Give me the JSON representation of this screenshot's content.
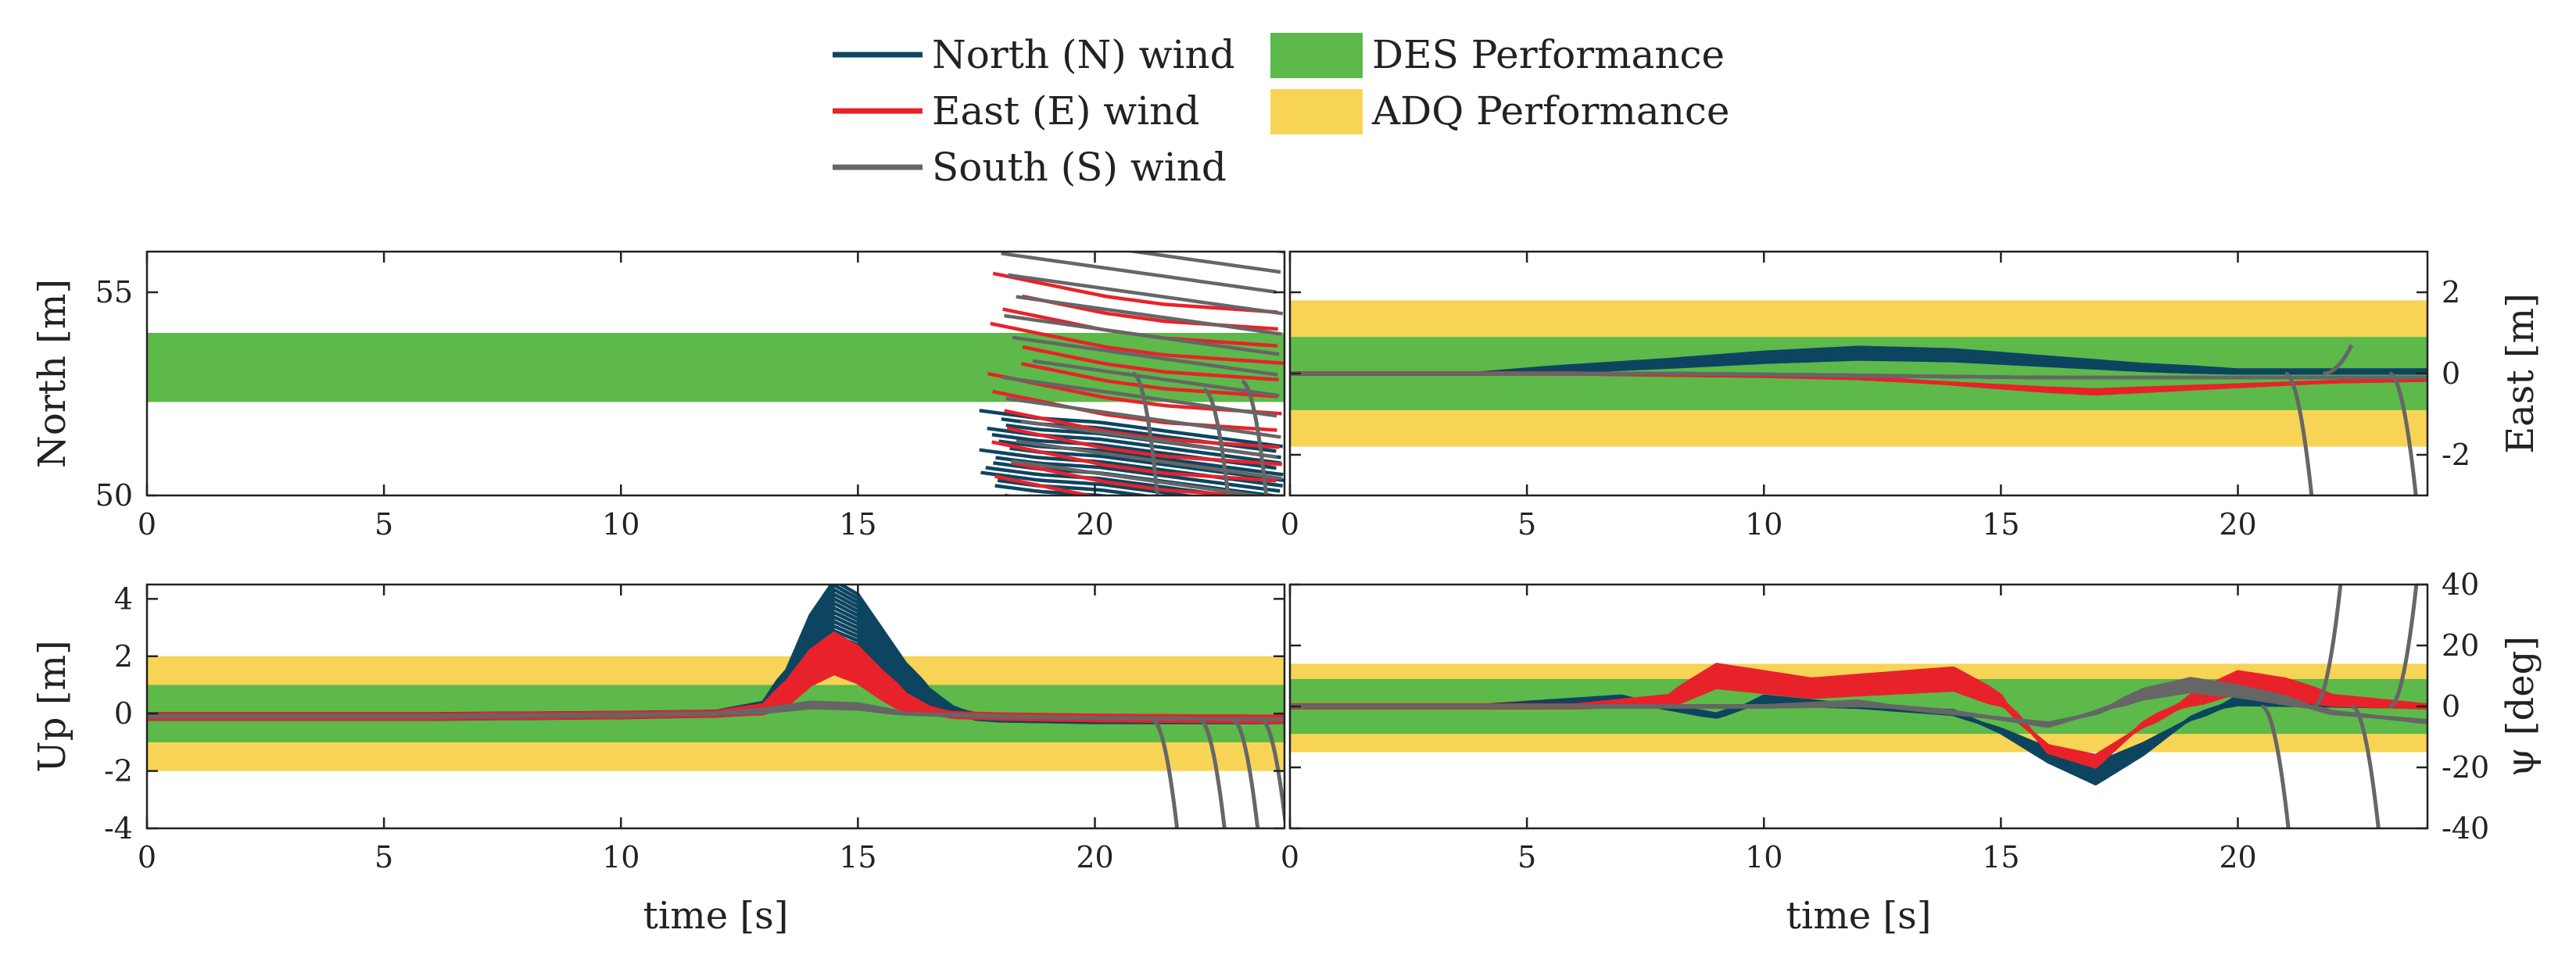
{
  "colors": {
    "north": "#0d4560",
    "east": "#e8222a",
    "south": "#666666",
    "des": "#5cb94a",
    "adq": "#f7d455",
    "axis": "#222222"
  },
  "legend": {
    "north": "North (N) wind",
    "east": "East (E) wind",
    "south": "South (S) wind",
    "des": "DES Performance",
    "adq": "ADQ Performance"
  },
  "chart_data": [
    {
      "id": "north",
      "type": "line",
      "ylabel": "North [m]",
      "ylabel_side": "left",
      "xlabel": "",
      "xlim": [
        0,
        24
      ],
      "ylim": [
        50,
        56
      ],
      "xticks": [
        "0",
        "5",
        "10",
        "15",
        "20"
      ],
      "yticks": [
        "50",
        "55"
      ],
      "des_band": [
        52.3,
        54.0
      ],
      "adq_band": null,
      "series": [
        {
          "name": "North (N) wind",
          "start": 17.5,
          "values": [
            51.2,
            51.0,
            50.9,
            50.7,
            50.5,
            50.3
          ],
          "spread": 0.9
        },
        {
          "name": "East (E) wind",
          "start": 17.7,
          "values": [
            52.8,
            52.5,
            52.2,
            52.0,
            51.9,
            51.8
          ],
          "spread": 2.7
        },
        {
          "name": "South (S) wind",
          "start": 17.9,
          "values": [
            54.2,
            54.0,
            53.8,
            53.6,
            53.4,
            53.2
          ],
          "spread": 3.3
        }
      ]
    },
    {
      "id": "east",
      "type": "line",
      "ylabel": "East [m]",
      "ylabel_side": "right",
      "xlabel": "",
      "xlim": [
        0,
        24
      ],
      "ylim": [
        -3,
        3
      ],
      "xticks": [
        "0",
        "5",
        "10",
        "15",
        "20"
      ],
      "yticks": [
        "-2",
        "0",
        "2"
      ],
      "des_band": [
        -0.9,
        0.9
      ],
      "adq_band": [
        -1.8,
        1.8
      ],
      "series": [
        {
          "name": "North (N) wind",
          "x": [
            0,
            4,
            8,
            10,
            12,
            14,
            16,
            18,
            20,
            22,
            24
          ],
          "y": [
            0,
            0,
            0.25,
            0.4,
            0.5,
            0.45,
            0.3,
            0.15,
            0.05,
            0.05,
            0.05
          ],
          "spread": 0.12
        },
        {
          "name": "East (E) wind",
          "x": [
            0,
            6,
            10,
            12,
            14,
            16,
            17,
            18,
            20,
            22,
            24
          ],
          "y": [
            0,
            0,
            -0.05,
            -0.1,
            -0.25,
            -0.4,
            -0.45,
            -0.4,
            -0.3,
            -0.2,
            -0.15
          ],
          "spread": 0.12
        },
        {
          "name": "South (S) wind",
          "x": [
            0,
            4,
            8,
            12,
            16,
            20,
            24
          ],
          "y": [
            0,
            0,
            0,
            -0.05,
            -0.1,
            -0.1,
            -0.1
          ],
          "spread": 0.05
        }
      ]
    },
    {
      "id": "up",
      "type": "line",
      "ylabel": "Up [m]",
      "ylabel_side": "left",
      "xlabel": "time [s]",
      "xlim": [
        0,
        24
      ],
      "ylim": [
        -4,
        4.5
      ],
      "xticks": [
        "0",
        "5",
        "10",
        "15",
        "20"
      ],
      "yticks": [
        "-4",
        "-2",
        "0",
        "2",
        "4"
      ],
      "des_band": [
        -1,
        1
      ],
      "adq_band": [
        -2,
        2
      ],
      "series": [
        {
          "name": "North (N) wind",
          "x": [
            0,
            6,
            10,
            12,
            13,
            13.5,
            14,
            14.5,
            15,
            15.5,
            16,
            16.5,
            17,
            17.5,
            18,
            20,
            24
          ],
          "y": [
            -0.1,
            -0.1,
            -0.05,
            0,
            0.2,
            1.0,
            2.6,
            3.6,
            3.2,
            2.2,
            1.2,
            0.5,
            0.1,
            -0.1,
            -0.15,
            -0.2,
            -0.2
          ],
          "spread": 0.9
        },
        {
          "name": "East (E) wind",
          "x": [
            0,
            6,
            10,
            12,
            13,
            13.5,
            14,
            14.5,
            15,
            15.5,
            16,
            16.5,
            17,
            18,
            20,
            24
          ],
          "y": [
            -0.1,
            -0.1,
            -0.05,
            0,
            0.15,
            0.7,
            1.6,
            2.1,
            1.7,
            1.0,
            0.4,
            0.1,
            -0.05,
            -0.1,
            -0.15,
            -0.2
          ],
          "spread": 0.8
        },
        {
          "name": "South (S) wind",
          "x": [
            0,
            6,
            10,
            12,
            13,
            14,
            15,
            16,
            18,
            20,
            24
          ],
          "y": [
            -0.1,
            -0.1,
            -0.05,
            0,
            0.1,
            0.3,
            0.25,
            0,
            -0.1,
            -0.15,
            -0.2
          ],
          "spread": 0.1
        }
      ]
    },
    {
      "id": "psi",
      "type": "line",
      "ylabel": "ψ [deg]",
      "ylabel_side": "right",
      "xlabel": "time [s]",
      "xlim": [
        0,
        24
      ],
      "ylim": [
        -40,
        40
      ],
      "xticks": [
        "0",
        "5",
        "10",
        "15",
        "20"
      ],
      "yticks": [
        "-40",
        "-20",
        "0",
        "20",
        "40"
      ],
      "des_band": [
        -9,
        9
      ],
      "adq_band": [
        -15,
        14
      ],
      "series": [
        {
          "name": "North (N) wind",
          "x": [
            0,
            4,
            7,
            9,
            10,
            12,
            14,
            15,
            16,
            17,
            18,
            19,
            20,
            22,
            24
          ],
          "y": [
            0,
            0,
            2,
            -3,
            2,
            0,
            -2,
            -8,
            -16,
            -22,
            -14,
            -4,
            2,
            1,
            0
          ],
          "spread": 3
        },
        {
          "name": "East (E) wind",
          "x": [
            0,
            6,
            8,
            9,
            10,
            11,
            12,
            13,
            14,
            15,
            16,
            17,
            18,
            19,
            20,
            21,
            22,
            24
          ],
          "y": [
            0,
            0,
            2,
            10,
            8,
            6,
            7,
            8,
            9,
            2,
            -14,
            -18,
            -6,
            2,
            8,
            6,
            2,
            0
          ],
          "spread": 5
        },
        {
          "name": "South (S) wind",
          "x": [
            0,
            8,
            10,
            12,
            14,
            16,
            17,
            18,
            19,
            20,
            21,
            22,
            24
          ],
          "y": [
            0,
            0,
            0,
            1,
            -2,
            -6,
            -2,
            4,
            7,
            5,
            2,
            -2,
            -5
          ],
          "spread": 2
        }
      ]
    }
  ]
}
